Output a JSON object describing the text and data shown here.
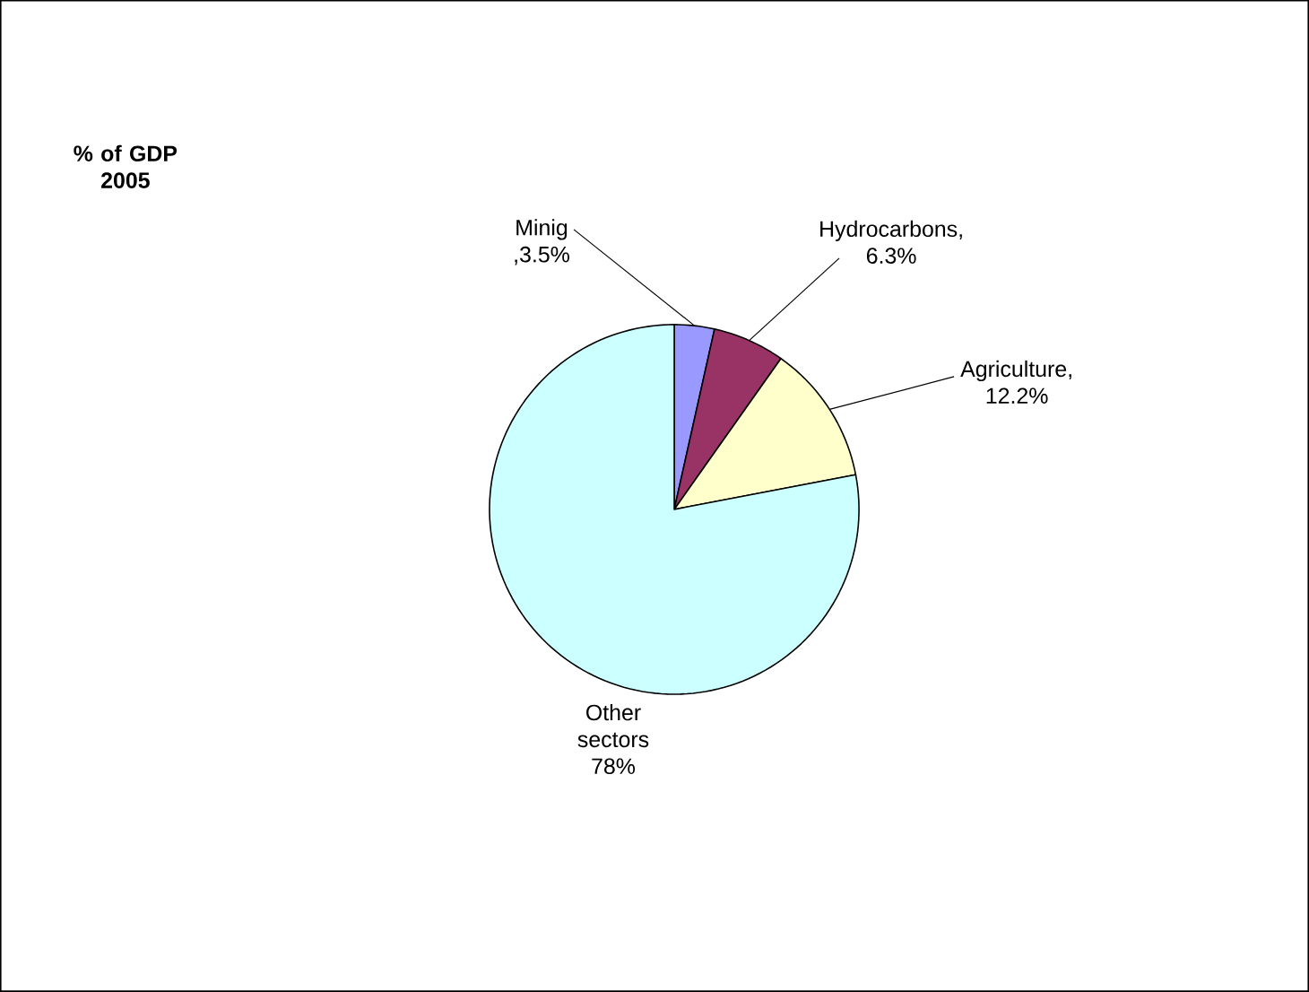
{
  "chart_data": {
    "type": "pie",
    "title": "% of GDP 2005",
    "categories": [
      "Minig",
      "Hydrocarbons",
      "Agriculture",
      "Other sectors"
    ],
    "values": [
      3.5,
      6.3,
      12.2,
      78
    ],
    "value_labels": [
      ",3.5%",
      ", 6.3%",
      ", 12.2%",
      "78%"
    ],
    "colors": [
      "#9999ff",
      "#993366",
      "#ffffcc",
      "#ccffff"
    ]
  }
}
